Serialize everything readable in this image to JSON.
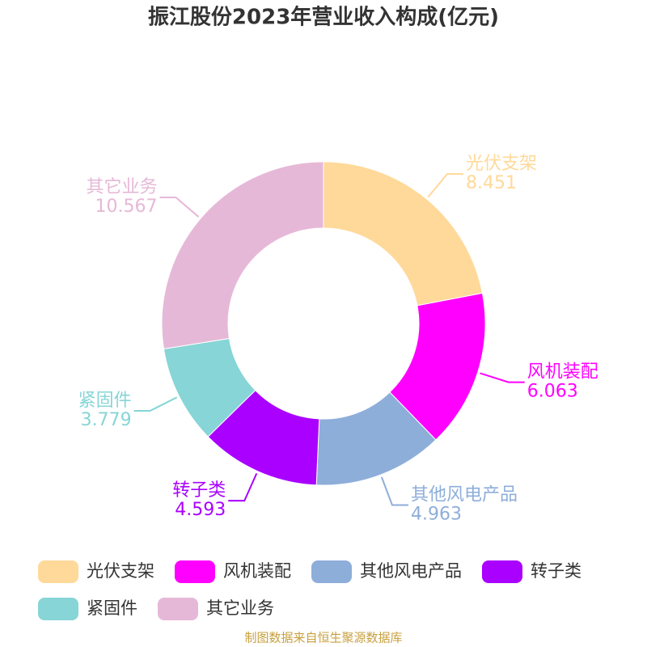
{
  "chart_data": {
    "type": "donut",
    "title": "振江股份2023年营业收入构成(亿元)",
    "categories": [
      "光伏支架",
      "风机装配",
      "其他风电产品",
      "转子类",
      "紧固件",
      "其它业务"
    ],
    "values": [
      8.451,
      6.063,
      4.963,
      4.593,
      3.779,
      10.567
    ],
    "colors": [
      "#FFD99A",
      "#FF00FF",
      "#8EAEDA",
      "#AA00FF",
      "#87D5D6",
      "#E6B8D7"
    ],
    "source": "制图数据来自恒生聚源数据库"
  }
}
